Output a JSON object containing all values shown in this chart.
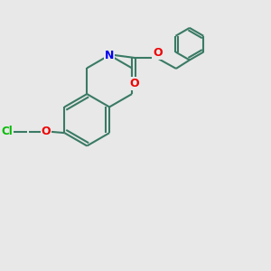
{
  "background_color": "#e8e8e8",
  "bond_color": "#3a7a65",
  "bond_width": 1.5,
  "atom_colors": {
    "N": "#0000ee",
    "O": "#ee0000",
    "Cl": "#00bb00",
    "C": "#3a7a65"
  },
  "figsize": [
    3.0,
    3.0
  ],
  "dpi": 100
}
